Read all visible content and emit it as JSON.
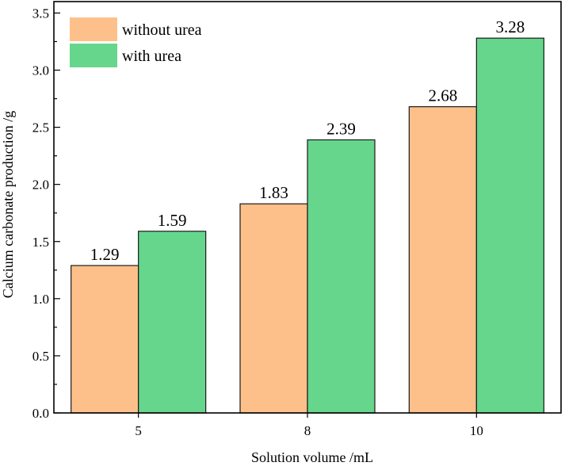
{
  "chart_data": {
    "type": "bar",
    "categories": [
      "5",
      "8",
      "10"
    ],
    "series": [
      {
        "name": "without urea",
        "values": [
          1.29,
          1.83,
          2.68
        ],
        "color": "#fec08a"
      },
      {
        "name": "with urea",
        "values": [
          1.59,
          2.39,
          3.28
        ],
        "color": "#66d68c"
      }
    ],
    "data_labels": [
      [
        "1.29",
        "1.83",
        "2.68"
      ],
      [
        "1.59",
        "2.39",
        "3.28"
      ]
    ],
    "xlabel": "Solution volume /mL",
    "ylabel": "Calcium carbonate production /g",
    "ylim": [
      0,
      3.6
    ],
    "yticks": [
      "0.0",
      "0.5",
      "1.0",
      "1.5",
      "2.0",
      "2.5",
      "3.0",
      "3.5"
    ],
    "ytick_values": [
      0,
      0.5,
      1.0,
      1.5,
      2.0,
      2.5,
      3.0,
      3.5
    ],
    "grid": false,
    "legend_position": "top-left"
  }
}
